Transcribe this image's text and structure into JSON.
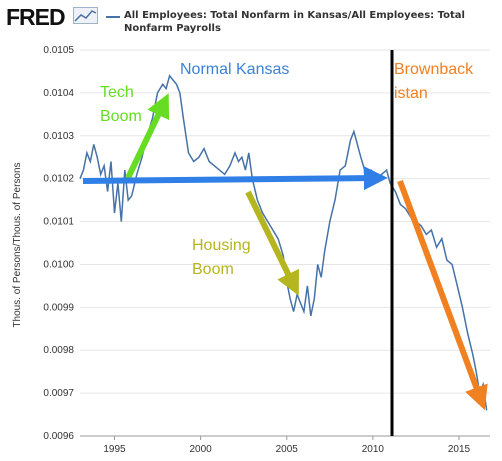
{
  "header": {
    "logo": "FRED",
    "legend_series": "All Employees: Total Nonfarm in Kansas/All Employees: Total Nonfarm Payrolls"
  },
  "annotations": {
    "normal": "Normal Kansas",
    "tech_1": "Tech",
    "tech_2": "Boom",
    "housing_1": "Housing",
    "housing_2": "Boom",
    "brown_1": "Brownback",
    "brown_2": "istan"
  },
  "colors": {
    "series": "#4572a7",
    "blue_arrow": "#2f7fe6",
    "green_arrow": "#66dd22",
    "olive_arrow": "#b5b520",
    "orange_arrow": "#f08020",
    "vline": "#000000"
  },
  "chart_data": {
    "type": "line",
    "title": "All Employees: Total Nonfarm in Kansas/All Employees: Total Nonfarm Payrolls",
    "xlabel": "",
    "ylabel": "Thous. of Persons/Thous. of Persons",
    "xlim": [
      1993,
      2016.8
    ],
    "ylim": [
      0.0096,
      0.0105
    ],
    "xticks": [
      1995,
      2000,
      2005,
      2010,
      2015
    ],
    "yticks": [
      0.0096,
      0.0097,
      0.0098,
      0.0099,
      0.01,
      0.0101,
      0.0102,
      0.0103,
      0.0104,
      0.0105
    ],
    "ytick_labels": [
      "0.0096",
      "0.0097",
      "0.0098",
      "0.0099",
      "0.0100",
      "0.0101",
      "0.0102",
      "0.0103",
      "0.0104",
      "0.0105"
    ],
    "grid": true,
    "legend": "top",
    "series": [
      {
        "name": "All Employees: Total Nonfarm in Kansas/All Employees: Total Nonfarm Payrolls",
        "color": "#4572a7",
        "x": [
          1993.0,
          1993.2,
          1993.4,
          1993.6,
          1993.8,
          1994.0,
          1994.2,
          1994.4,
          1994.6,
          1994.8,
          1995.0,
          1995.2,
          1995.4,
          1995.6,
          1995.8,
          1996.0,
          1996.3,
          1996.6,
          1996.9,
          1997.2,
          1997.5,
          1997.8,
          1998.0,
          1998.2,
          1998.4,
          1998.6,
          1998.8,
          1999.0,
          1999.3,
          1999.6,
          1999.9,
          2000.2,
          2000.5,
          2000.8,
          2001.1,
          2001.4,
          2001.7,
          2002.0,
          2002.2,
          2002.4,
          2002.6,
          2002.8,
          2003.0,
          2003.3,
          2003.6,
          2003.9,
          2004.2,
          2004.5,
          2004.8,
          2005.0,
          2005.2,
          2005.4,
          2005.6,
          2005.8,
          2006.0,
          2006.2,
          2006.4,
          2006.6,
          2006.8,
          2007.0,
          2007.2,
          2007.5,
          2007.8,
          2008.1,
          2008.4,
          2008.7,
          2008.9,
          2009.1,
          2009.3,
          2009.6,
          2009.9,
          2010.2,
          2010.5,
          2010.8,
          2011.0,
          2011.3,
          2011.6,
          2011.9,
          2012.2,
          2012.5,
          2012.8,
          2013.1,
          2013.4,
          2013.7,
          2014.0,
          2014.3,
          2014.6,
          2014.9,
          2015.2,
          2015.5,
          2015.8,
          2016.0,
          2016.2,
          2016.4,
          2016.6
        ],
        "values": [
          0.0102,
          0.01022,
          0.01026,
          0.01024,
          0.01028,
          0.01025,
          0.01021,
          0.01023,
          0.01017,
          0.01024,
          0.01012,
          0.01019,
          0.0101,
          0.01022,
          0.01015,
          0.01016,
          0.01021,
          0.01025,
          0.0103,
          0.01034,
          0.0104,
          0.01042,
          0.01041,
          0.01044,
          0.01043,
          0.01042,
          0.0104,
          0.01034,
          0.01026,
          0.01024,
          0.01025,
          0.01027,
          0.01024,
          0.01023,
          0.01022,
          0.01021,
          0.01023,
          0.01026,
          0.01024,
          0.01025,
          0.01022,
          0.01026,
          0.0102,
          0.01015,
          0.01012,
          0.0101,
          0.01008,
          0.01006,
          0.01002,
          0.00996,
          0.00992,
          0.00989,
          0.00993,
          0.00991,
          0.00989,
          0.00995,
          0.00988,
          0.00992,
          0.01,
          0.00997,
          0.01003,
          0.0101,
          0.01015,
          0.01022,
          0.01023,
          0.01029,
          0.01031,
          0.01028,
          0.01025,
          0.01021,
          0.01022,
          0.0102,
          0.01021,
          0.01022,
          0.01019,
          0.01017,
          0.01014,
          0.01013,
          0.01011,
          0.0101,
          0.01009,
          0.01007,
          0.01008,
          0.01004,
          0.01006,
          0.01001,
          0.01,
          0.00995,
          0.0099,
          0.00984,
          0.00979,
          0.00975,
          0.0097,
          0.00972,
          0.00966
        ]
      }
    ]
  }
}
